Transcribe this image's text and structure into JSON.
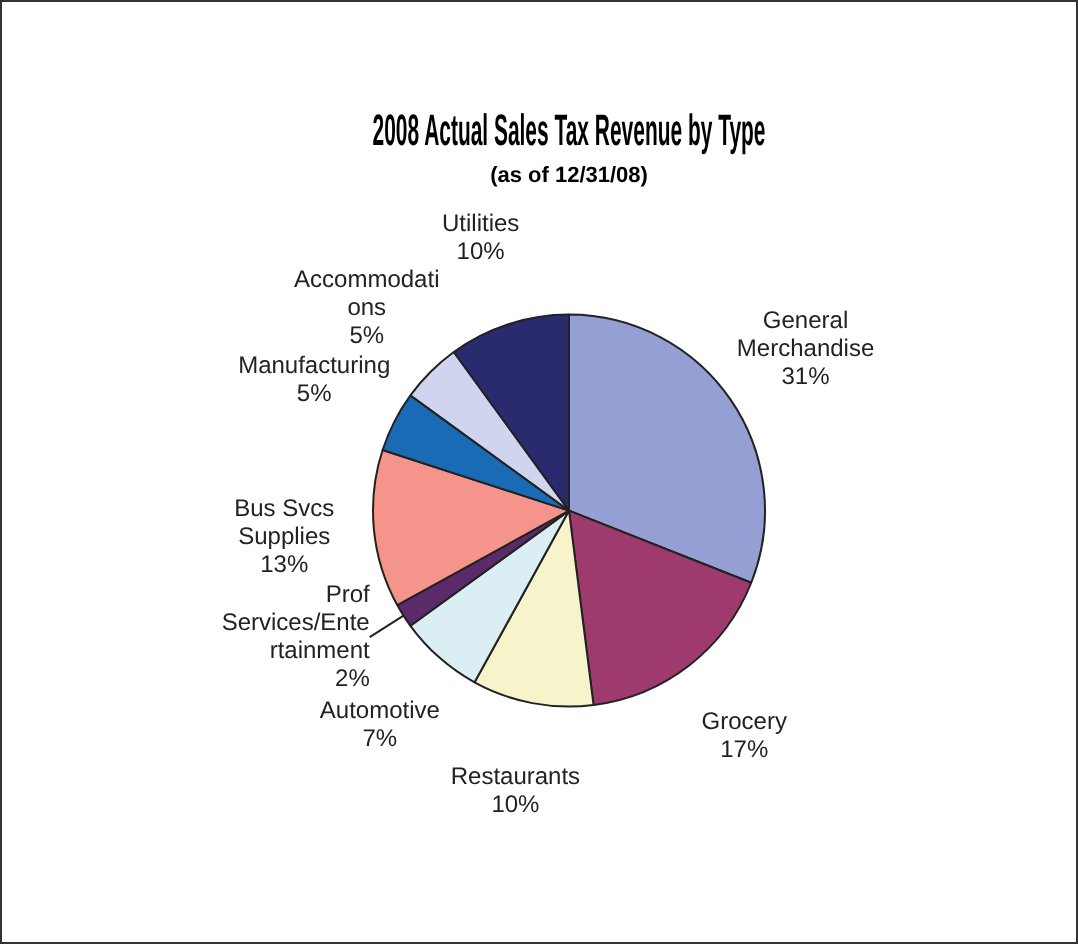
{
  "chart_data": {
    "type": "pie",
    "title": "2008 Actual Sales Tax Revenue by Type",
    "subtitle": "(as of 12/31/08)",
    "categories": [
      "General Merchandise",
      "Grocery",
      "Restaurants",
      "Automotive",
      "Prof Services/Entertainment",
      "Bus Svcs Supplies",
      "Manufacturing",
      "Accommodations",
      "Utilities"
    ],
    "values": [
      31,
      17,
      10,
      7,
      2,
      13,
      5,
      5,
      10
    ],
    "value_labels": [
      "31%",
      "17%",
      "10%",
      "7%",
      "2%",
      "13%",
      "5%",
      "5%",
      "10%"
    ],
    "colors": [
      "#959fd4",
      "#9e3a6e",
      "#f7f4cc",
      "#daeef3",
      "#5a2a6a",
      "#f4948a",
      "#1a6bb5",
      "#d0d4ee",
      "#2a2a6e"
    ],
    "legend": false
  }
}
